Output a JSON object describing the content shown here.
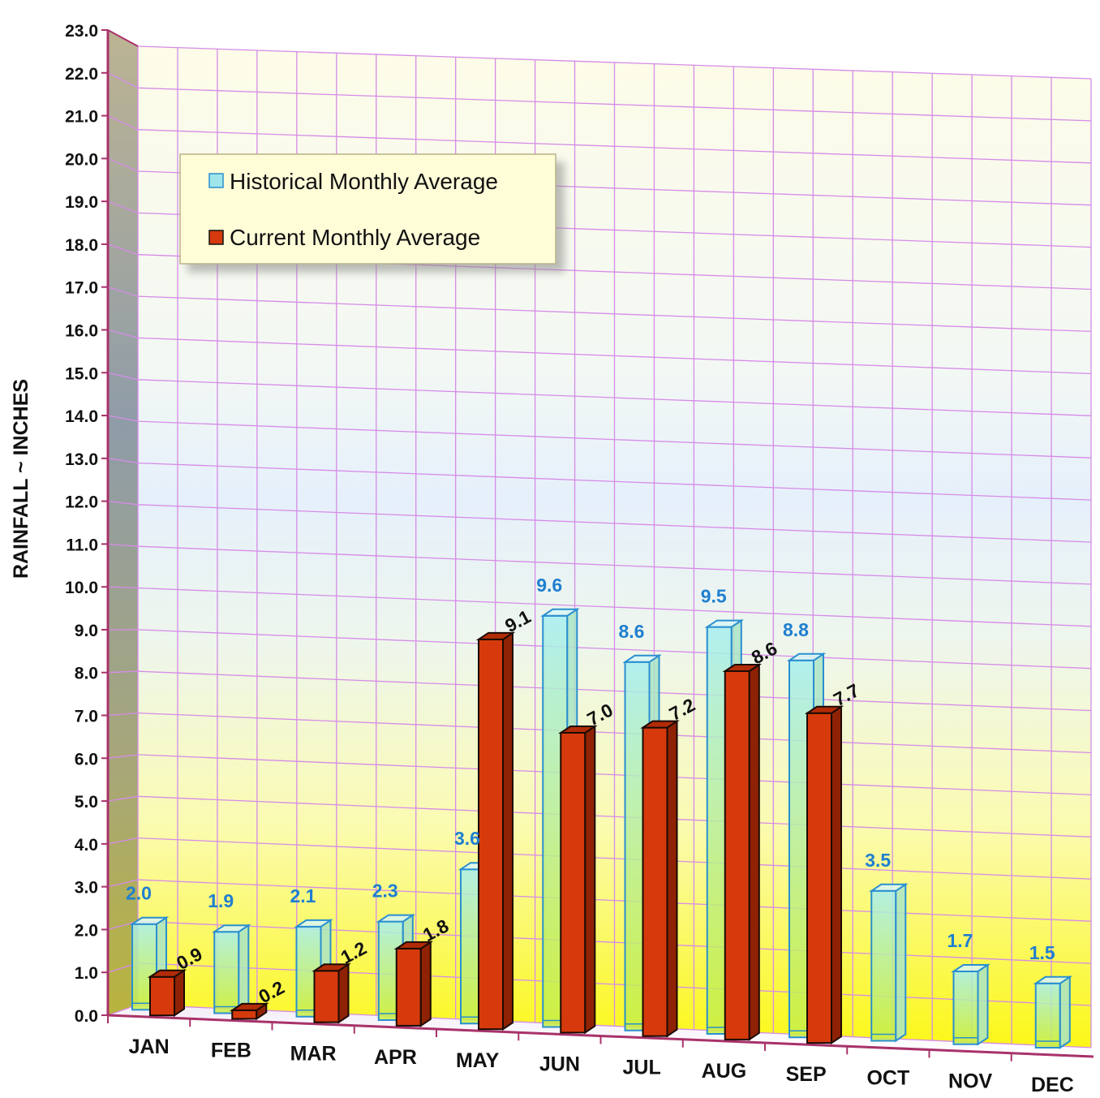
{
  "chart_data": {
    "type": "bar",
    "ylabel": "RAINFALL ~ INCHES",
    "ylim": [
      0,
      23
    ],
    "y_ticks": [
      "0.0",
      "1.0",
      "2.0",
      "3.0",
      "4.0",
      "5.0",
      "6.0",
      "7.0",
      "8.0",
      "9.0",
      "10.0",
      "11.0",
      "12.0",
      "13.0",
      "14.0",
      "15.0",
      "16.0",
      "17.0",
      "18.0",
      "19.0",
      "20.0",
      "21.0",
      "22.0",
      "23.0"
    ],
    "categories": [
      "JAN",
      "FEB",
      "MAR",
      "APR",
      "MAY",
      "JUN",
      "JUL",
      "AUG",
      "SEP",
      "OCT",
      "NOV",
      "DEC"
    ],
    "legend_position": "top-left",
    "grid": true,
    "series": [
      {
        "name": "Historical Monthly Average",
        "values": [
          2.0,
          1.9,
          2.1,
          2.3,
          3.6,
          9.6,
          8.6,
          9.5,
          8.8,
          3.5,
          1.7,
          1.5
        ],
        "labels": [
          "2.0",
          "1.9",
          "2.1",
          "2.3",
          "3.6",
          "9.6",
          "8.6",
          "9.5",
          "8.8",
          "3.5",
          "1.7",
          "1.5"
        ],
        "color": "#8fe3e8"
      },
      {
        "name": "Current Monthly Average",
        "values": [
          0.9,
          0.2,
          1.2,
          1.8,
          9.1,
          7.0,
          7.2,
          8.6,
          7.7,
          null,
          null,
          null
        ],
        "labels": [
          "0.9",
          "0.2",
          "1.2",
          "1.8",
          "9.1",
          "7.0",
          "7.2",
          "8.6",
          "7.7",
          "",
          "",
          ""
        ],
        "color": "#d63a0c"
      }
    ]
  }
}
